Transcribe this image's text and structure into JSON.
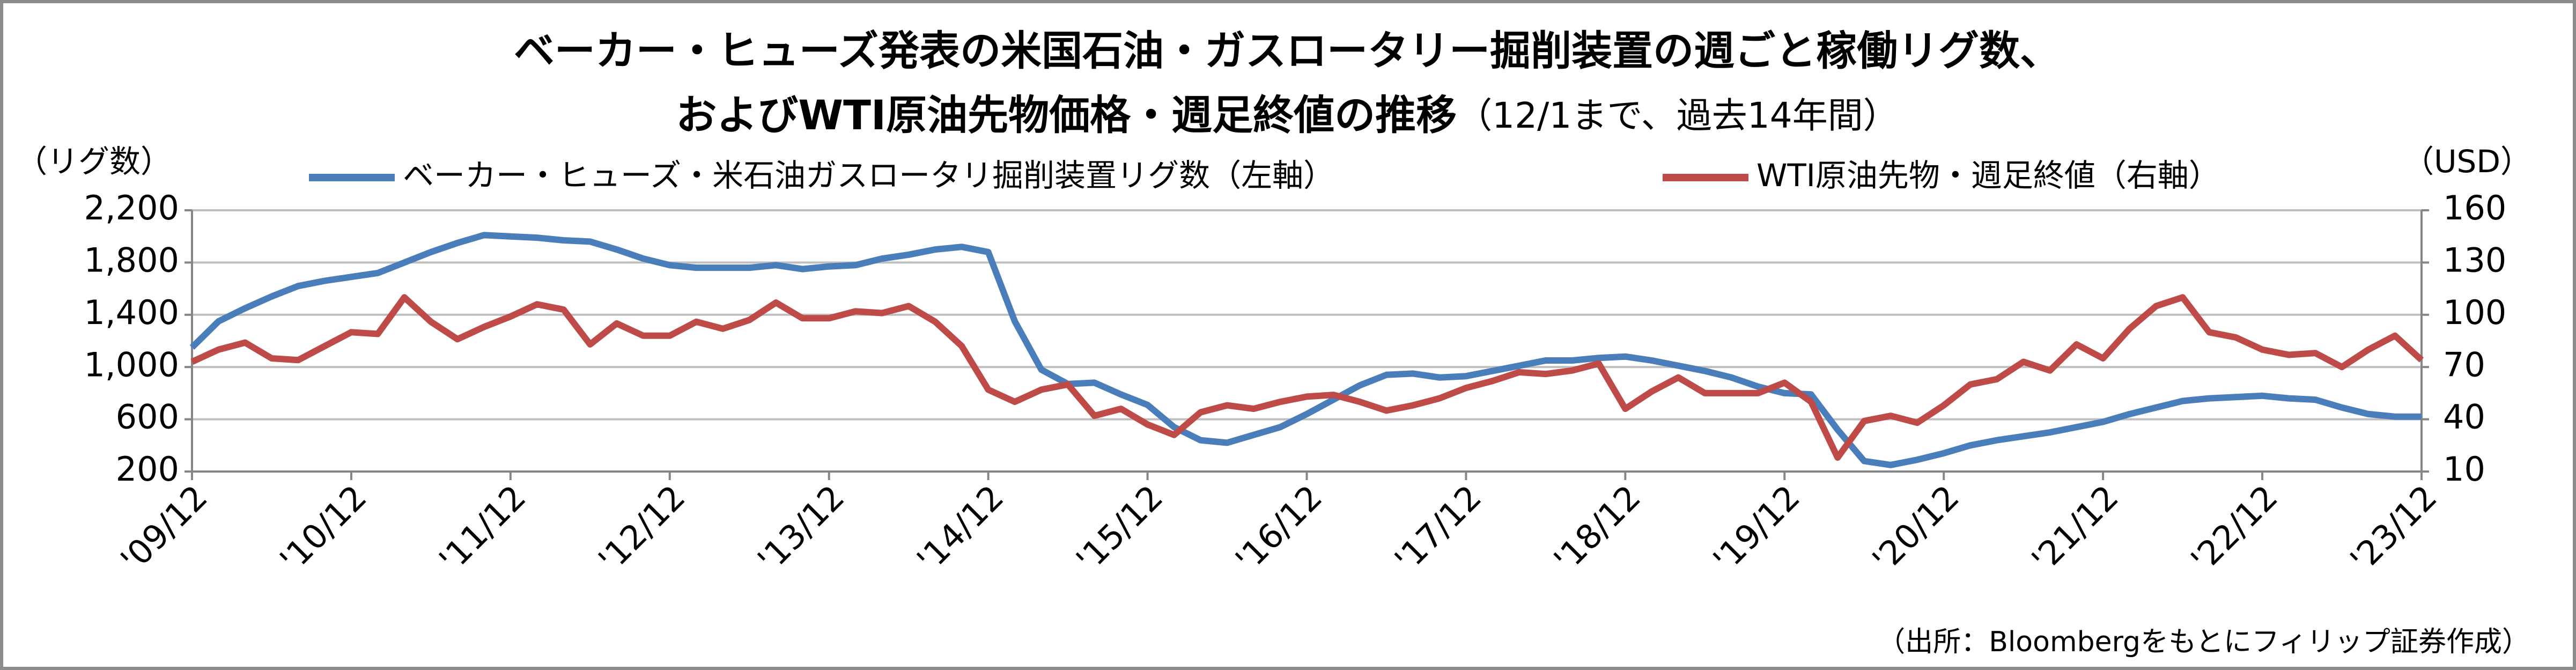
{
  "chart_data": {
    "type": "line",
    "title": [
      "ベーカー・ヒューズ発表の米国石油・ガスロータリー掘削装置の週ごと稼働リグ数、",
      "およびWTI原油先物価格・週足終値の推移"
    ],
    "title_note": "（12/1まで、過去14年間）",
    "ylabel": "（リグ数）",
    "y2label": "（USD）",
    "source": "（出所：Bloombergをもとにフィリップ証券作成）",
    "x": [
      "'09/12",
      "'10/02",
      "'10/04",
      "'10/06",
      "'10/08",
      "'10/10",
      "'10/12",
      "'11/02",
      "'11/04",
      "'11/06",
      "'11/08",
      "'11/10",
      "'11/12",
      "'12/02",
      "'12/04",
      "'12/06",
      "'12/08",
      "'12/10",
      "'12/12",
      "'13/02",
      "'13/04",
      "'13/06",
      "'13/08",
      "'13/10",
      "'13/12",
      "'14/02",
      "'14/04",
      "'14/06",
      "'14/08",
      "'14/10",
      "'14/12",
      "'15/02",
      "'15/04",
      "'15/06",
      "'15/08",
      "'15/10",
      "'15/12",
      "'16/02",
      "'16/04",
      "'16/06",
      "'16/08",
      "'16/10",
      "'16/12",
      "'17/02",
      "'17/04",
      "'17/06",
      "'17/08",
      "'17/10",
      "'17/12",
      "'18/02",
      "'18/04",
      "'18/06",
      "'18/08",
      "'18/10",
      "'18/12",
      "'19/02",
      "'19/04",
      "'19/06",
      "'19/08",
      "'19/10",
      "'19/12",
      "'20/02",
      "'20/04",
      "'20/06",
      "'20/08",
      "'20/10",
      "'20/12",
      "'21/02",
      "'21/04",
      "'21/06",
      "'21/08",
      "'21/10",
      "'21/12",
      "'22/02",
      "'22/04",
      "'22/06",
      "'22/08",
      "'22/10",
      "'22/12",
      "'23/02",
      "'23/04",
      "'23/06",
      "'23/08",
      "'23/10",
      "'23/12"
    ],
    "xticks": [
      "'09/12",
      "'10/12",
      "'11/12",
      "'12/12",
      "'13/12",
      "'14/12",
      "'15/12",
      "'16/12",
      "'17/12",
      "'18/12",
      "'19/12",
      "'20/12",
      "'21/12",
      "'22/12",
      "'23/12"
    ],
    "series": [
      {
        "name": "ベーカー・ヒューズ・米石油ガスロータリ掘削装置リグ数（左軸）",
        "color": "#4a7ebb",
        "values": [
          1150,
          1350,
          1450,
          1540,
          1620,
          1660,
          1690,
          1720,
          1800,
          1880,
          1950,
          2010,
          2000,
          1990,
          1970,
          1960,
          1900,
          1830,
          1780,
          1760,
          1760,
          1760,
          1780,
          1750,
          1770,
          1780,
          1830,
          1860,
          1900,
          1920,
          1880,
          1350,
          980,
          870,
          880,
          790,
          710,
          540,
          440,
          420,
          480,
          540,
          640,
          750,
          860,
          940,
          950,
          920,
          930,
          970,
          1010,
          1050,
          1050,
          1070,
          1080,
          1050,
          1010,
          970,
          920,
          850,
          800,
          790,
          520,
          280,
          250,
          290,
          340,
          400,
          440,
          470,
          500,
          540,
          580,
          640,
          690,
          740,
          760,
          770,
          780,
          760,
          750,
          690,
          640,
          620,
          620
        ]
      },
      {
        "name": "WTI原油先物・週足終値（右軸）",
        "color": "#be4b48",
        "axis": "y2",
        "values": [
          73,
          80,
          84,
          75,
          74,
          82,
          90,
          89,
          110,
          96,
          86,
          93,
          99,
          106,
          103,
          83,
          95,
          88,
          88,
          96,
          92,
          97,
          107,
          98,
          98,
          102,
          101,
          105,
          96,
          82,
          57,
          50,
          57,
          60,
          42,
          46,
          37,
          31,
          44,
          48,
          46,
          50,
          53,
          54,
          50,
          45,
          48,
          52,
          58,
          62,
          67,
          66,
          68,
          72,
          46,
          56,
          64,
          55,
          55,
          55,
          61,
          50,
          18,
          39,
          42,
          38,
          48,
          60,
          63,
          73,
          68,
          83,
          75,
          92,
          105,
          110,
          90,
          87,
          80,
          77,
          78,
          70,
          80,
          88,
          74
        ]
      }
    ],
    "ylim": [
      200,
      2200
    ],
    "yticks": [
      200,
      600,
      {
        "value": 1000,
        "label": "1,000"
      },
      {
        "value": 1400,
        "label": "1,400"
      },
      {
        "value": 1800,
        "label": "1,800"
      },
      {
        "value": 2200,
        "label": "2,200"
      }
    ],
    "y2lim": [
      10,
      160
    ],
    "y2ticks": [
      10,
      40,
      70,
      100,
      130,
      160
    ],
    "grid": true
  }
}
